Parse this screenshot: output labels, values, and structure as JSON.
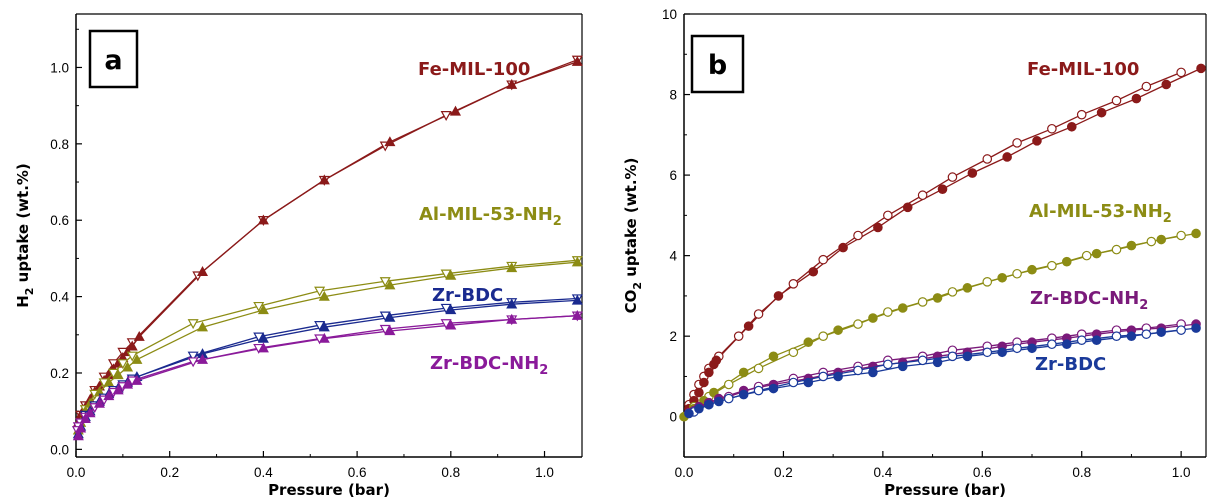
{
  "chart_data": [
    {
      "type": "line",
      "panel_label": "a",
      "xlabel": "Pressure (bar)",
      "ylabel": "H2 uptake (wt.%)",
      "ylabel_main": "H",
      "ylabel_sub": "2",
      "ylabel_rest": " uptake (wt.%)",
      "xlim": [
        0,
        1.08
      ],
      "ylim": [
        -0.02,
        1.14
      ],
      "xticks": [
        0.0,
        0.2,
        0.4,
        0.6,
        0.8,
        1.0
      ],
      "xtick_labels": [
        "0.0",
        "0.2",
        "0.4",
        "0.6",
        "0.8",
        "1.0"
      ],
      "yticks": [
        0.0,
        0.2,
        0.4,
        0.6,
        0.8,
        1.0
      ],
      "ytick_labels": [
        "0.0",
        "0.2",
        "0.4",
        "0.6",
        "0.8",
        "1.0"
      ],
      "grid": false,
      "series": [
        {
          "name": "Fe-MIL-100",
          "label_main": "Fe-MIL-100",
          "label_sub": "",
          "color": "#8b1a1a",
          "adsorption": {
            "x": [
              0.005,
              0.01,
              0.015,
              0.02,
              0.03,
              0.04,
              0.05,
              0.06,
              0.07,
              0.08,
              0.09,
              0.1,
              0.11,
              0.12,
              0.135,
              0.27,
              0.4,
              0.53,
              0.67,
              0.81,
              0.93,
              1.07
            ],
            "y": [
              0.07,
              0.09,
              0.1,
              0.11,
              0.13,
              0.15,
              0.165,
              0.18,
              0.195,
              0.21,
              0.225,
              0.24,
              0.255,
              0.27,
              0.295,
              0.465,
              0.6,
              0.705,
              0.805,
              0.885,
              0.955,
              1.015
            ]
          },
          "desorption": {
            "x": [
              1.07,
              0.93,
              0.79,
              0.66,
              0.53,
              0.4,
              0.26,
              0.12,
              0.1,
              0.08,
              0.06,
              0.04,
              0.02,
              0.01
            ],
            "y": [
              1.02,
              0.955,
              0.875,
              0.795,
              0.705,
              0.6,
              0.455,
              0.28,
              0.255,
              0.225,
              0.19,
              0.155,
              0.115,
              0.09
            ]
          }
        },
        {
          "name": "Al-MIL-53-NH2",
          "label_main": "Al-MIL-53-NH",
          "label_sub": "2",
          "color": "#8c8c14",
          "adsorption": {
            "x": [
              0.005,
              0.01,
              0.02,
              0.03,
              0.05,
              0.07,
              0.09,
              0.11,
              0.13,
              0.27,
              0.4,
              0.53,
              0.67,
              0.8,
              0.93,
              1.07
            ],
            "y": [
              0.05,
              0.07,
              0.1,
              0.12,
              0.15,
              0.175,
              0.195,
              0.215,
              0.235,
              0.32,
              0.365,
              0.4,
              0.43,
              0.455,
              0.475,
              0.49
            ]
          },
          "desorption": {
            "x": [
              1.07,
              0.93,
              0.79,
              0.66,
              0.52,
              0.39,
              0.25,
              0.12,
              0.1,
              0.08,
              0.06,
              0.04,
              0.02
            ],
            "y": [
              0.495,
              0.48,
              0.46,
              0.44,
              0.415,
              0.375,
              0.33,
              0.245,
              0.225,
              0.2,
              0.175,
              0.145,
              0.105
            ]
          }
        },
        {
          "name": "Zr-BDC",
          "label_main": "Zr-BDC",
          "label_sub": "",
          "color": "#1a2a8f",
          "adsorption": {
            "x": [
              0.005,
              0.01,
              0.02,
              0.03,
              0.05,
              0.07,
              0.09,
              0.11,
              0.13,
              0.27,
              0.4,
              0.53,
              0.67,
              0.8,
              0.93,
              1.07
            ],
            "y": [
              0.04,
              0.06,
              0.085,
              0.1,
              0.125,
              0.145,
              0.16,
              0.175,
              0.19,
              0.25,
              0.29,
              0.32,
              0.345,
              0.365,
              0.38,
              0.39
            ]
          },
          "desorption": {
            "x": [
              1.07,
              0.93,
              0.79,
              0.66,
              0.52,
              0.39,
              0.25,
              0.12,
              0.1,
              0.08,
              0.06,
              0.04,
              0.02
            ],
            "y": [
              0.395,
              0.385,
              0.37,
              0.35,
              0.325,
              0.295,
              0.245,
              0.185,
              0.17,
              0.155,
              0.135,
              0.115,
              0.09
            ]
          }
        },
        {
          "name": "Zr-BDC-NH2",
          "label_main": "Zr-BDC-NH",
          "label_sub": "2",
          "color": "#8a1a9a",
          "adsorption": {
            "x": [
              0.005,
              0.01,
              0.02,
              0.03,
              0.05,
              0.07,
              0.09,
              0.11,
              0.13,
              0.27,
              0.4,
              0.53,
              0.67,
              0.8,
              0.93,
              1.07
            ],
            "y": [
              0.035,
              0.055,
              0.08,
              0.095,
              0.12,
              0.14,
              0.155,
              0.17,
              0.18,
              0.235,
              0.265,
              0.29,
              0.31,
              0.325,
              0.34,
              0.35
            ]
          },
          "desorption": {
            "x": [
              1.07,
              0.93,
              0.79,
              0.66,
              0.52,
              0.39,
              0.25,
              0.12,
              0.1,
              0.08,
              0.06,
              0.04,
              0.02,
              0.01,
              0.005,
              0.003
            ],
            "y": [
              0.35,
              0.34,
              0.33,
              0.315,
              0.29,
              0.265,
              0.23,
              0.18,
              0.165,
              0.15,
              0.13,
              0.11,
              0.085,
              0.07,
              0.06,
              0.05
            ]
          }
        }
      ]
    },
    {
      "type": "line",
      "panel_label": "b",
      "xlabel": "Pressure (bar)",
      "ylabel": "CO2 uptake (wt.%)",
      "ylabel_main": "CO",
      "ylabel_sub": "2",
      "ylabel_rest": " uptake (wt.%)",
      "xlim": [
        0,
        1.05
      ],
      "ylim": [
        -1.0,
        10.0
      ],
      "xticks": [
        0.0,
        0.2,
        0.4,
        0.6,
        0.8,
        1.0
      ],
      "xtick_labels": [
        "0.0",
        "0.2",
        "0.4",
        "0.6",
        "0.8",
        "1.0"
      ],
      "yticks": [
        0,
        2,
        4,
        6,
        8,
        10
      ],
      "ytick_labels": [
        "0",
        "2",
        "4",
        "6",
        "8",
        "10"
      ],
      "grid": false,
      "series": [
        {
          "name": "Fe-MIL-100",
          "label_main": "Fe-MIL-100",
          "label_sub": "",
          "color": "#8b1a1a",
          "adsorption": {
            "x": [
              0.01,
              0.02,
              0.03,
              0.04,
              0.05,
              0.06,
              0.065,
              0.13,
              0.19,
              0.26,
              0.32,
              0.39,
              0.45,
              0.52,
              0.58,
              0.65,
              0.71,
              0.78,
              0.84,
              0.91,
              0.97,
              1.04
            ],
            "y": [
              0.2,
              0.4,
              0.6,
              0.85,
              1.1,
              1.3,
              1.4,
              2.25,
              3.0,
              3.6,
              4.2,
              4.7,
              5.2,
              5.65,
              6.05,
              6.45,
              6.85,
              7.2,
              7.55,
              7.9,
              8.25,
              8.65
            ]
          },
          "desorption": {
            "x": [
              1.0,
              0.93,
              0.87,
              0.8,
              0.74,
              0.67,
              0.61,
              0.54,
              0.48,
              0.41,
              0.35,
              0.28,
              0.22,
              0.15,
              0.11,
              0.07,
              0.05,
              0.04,
              0.03,
              0.02,
              0.01
            ],
            "y": [
              8.55,
              8.2,
              7.85,
              7.5,
              7.15,
              6.8,
              6.4,
              5.95,
              5.5,
              5.0,
              4.5,
              3.9,
              3.3,
              2.55,
              2.0,
              1.5,
              1.2,
              1.0,
              0.8,
              0.55,
              0.3
            ]
          }
        },
        {
          "name": "Al-MIL-53-NH2",
          "label_main": "Al-MIL-53-NH",
          "label_sub": "2",
          "color": "#8c8c14",
          "adsorption": {
            "x": [
              0.0,
              0.02,
              0.04,
              0.06,
              0.12,
              0.18,
              0.25,
              0.31,
              0.38,
              0.44,
              0.51,
              0.57,
              0.64,
              0.7,
              0.77,
              0.83,
              0.9,
              0.96,
              1.03
            ],
            "y": [
              0.0,
              0.2,
              0.4,
              0.6,
              1.1,
              1.5,
              1.85,
              2.15,
              2.45,
              2.7,
              2.95,
              3.2,
              3.45,
              3.65,
              3.85,
              4.05,
              4.25,
              4.4,
              4.55
            ]
          },
          "desorption": {
            "x": [
              1.0,
              0.94,
              0.87,
              0.81,
              0.74,
              0.67,
              0.61,
              0.54,
              0.48,
              0.41,
              0.35,
              0.28,
              0.22,
              0.15,
              0.09,
              0.05,
              0.02
            ],
            "y": [
              4.5,
              4.35,
              4.15,
              4.0,
              3.75,
              3.55,
              3.35,
              3.1,
              2.85,
              2.6,
              2.3,
              2.0,
              1.6,
              1.2,
              0.8,
              0.5,
              0.25
            ]
          }
        },
        {
          "name": "Zr-BDC-NH2",
          "label_main": "Zr-BDC-NH",
          "label_sub": "2",
          "color": "#7a1a7a",
          "adsorption": {
            "x": [
              0.01,
              0.03,
              0.05,
              0.07,
              0.12,
              0.18,
              0.25,
              0.31,
              0.38,
              0.44,
              0.51,
              0.57,
              0.64,
              0.7,
              0.77,
              0.83,
              0.9,
              0.96,
              1.03
            ],
            "y": [
              0.1,
              0.25,
              0.35,
              0.45,
              0.65,
              0.8,
              0.95,
              1.1,
              1.25,
              1.35,
              1.5,
              1.6,
              1.75,
              1.85,
              1.95,
              2.05,
              2.15,
              2.2,
              2.3
            ]
          },
          "desorption": {
            "x": [
              1.0,
              0.93,
              0.87,
              0.8,
              0.74,
              0.67,
              0.61,
              0.54,
              0.48,
              0.41,
              0.35,
              0.28,
              0.22,
              0.15,
              0.09,
              0.05,
              0.02
            ],
            "y": [
              2.3,
              2.2,
              2.15,
              2.05,
              1.95,
              1.85,
              1.75,
              1.65,
              1.5,
              1.4,
              1.25,
              1.1,
              0.95,
              0.75,
              0.5,
              0.35,
              0.15
            ]
          }
        },
        {
          "name": "Zr-BDC",
          "label_main": "Zr-BDC",
          "label_sub": "",
          "color": "#1a3a9a",
          "adsorption": {
            "x": [
              0.01,
              0.03,
              0.05,
              0.07,
              0.12,
              0.18,
              0.25,
              0.31,
              0.38,
              0.44,
              0.51,
              0.57,
              0.64,
              0.7,
              0.77,
              0.83,
              0.9,
              0.96,
              1.03
            ],
            "y": [
              0.08,
              0.2,
              0.3,
              0.38,
              0.55,
              0.7,
              0.85,
              1.0,
              1.1,
              1.25,
              1.35,
              1.5,
              1.6,
              1.7,
              1.8,
              1.9,
              2.0,
              2.1,
              2.2
            ]
          },
          "desorption": {
            "x": [
              1.0,
              0.93,
              0.87,
              0.8,
              0.74,
              0.67,
              0.61,
              0.54,
              0.48,
              0.41,
              0.35,
              0.28,
              0.22,
              0.15,
              0.09,
              0.05,
              0.02
            ],
            "y": [
              2.15,
              2.05,
              2.0,
              1.9,
              1.8,
              1.7,
              1.6,
              1.5,
              1.4,
              1.3,
              1.15,
              1.0,
              0.85,
              0.65,
              0.45,
              0.3,
              0.12
            ]
          }
        }
      ]
    }
  ]
}
